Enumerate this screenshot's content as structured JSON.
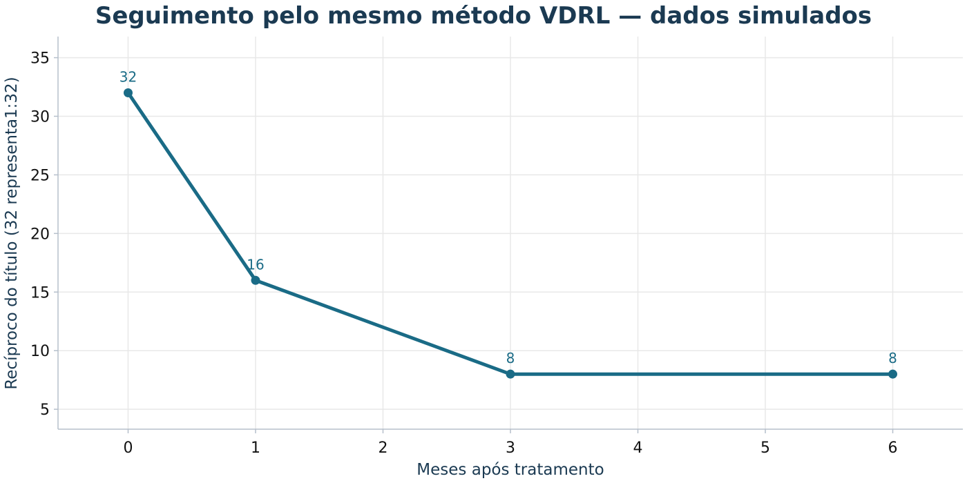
{
  "chart_data": {
    "type": "line",
    "title": "Seguimento pelo mesmo método VDRL — dados simulados",
    "xlabel": "Meses após tratamento",
    "ylabel": "Recíproco do título (32 representa1:32)",
    "xlim": [
      -0.55,
      6.55
    ],
    "ylim": [
      3.3,
      36.8
    ],
    "xticks": [
      "0",
      "1",
      "2",
      "3",
      "4",
      "5",
      "6"
    ],
    "yticks": [
      "5",
      "10",
      "15",
      "20",
      "25",
      "30",
      "35"
    ],
    "grid": true,
    "series": [
      {
        "x": [
          0,
          1,
          3,
          6
        ],
        "y": [
          32,
          16,
          8,
          8
        ],
        "data_labels": [
          "32",
          "16",
          "8",
          "8"
        ]
      }
    ]
  },
  "colors": {
    "line": "#1a6b86",
    "title": "#1b3a52",
    "grid": "#e8e8e8",
    "spine": "#b5bfcb"
  }
}
